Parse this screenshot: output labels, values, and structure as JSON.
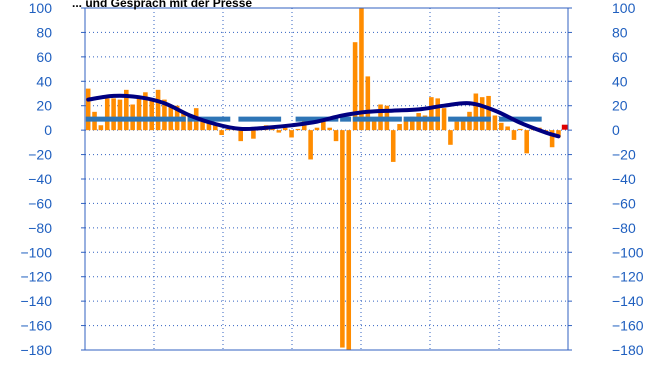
{
  "chart_data": {
    "type": "bar",
    "title": "... und Gespräch mit der Presse",
    "ylim": [
      -180,
      100
    ],
    "yticks": [
      100,
      80,
      60,
      40,
      20,
      0,
      -20,
      -40,
      -60,
      -80,
      -100,
      -120,
      -140,
      -160,
      -180
    ],
    "y_axis_right_mirrors_left": true,
    "grid": true,
    "colors": {
      "bars": "#FF8C00",
      "smooth_line": "#000080",
      "dashed_line": "#2E75B6",
      "last_marker": "#E00000",
      "axis_labels": "#1F5FBF",
      "grid": "#3060C0"
    },
    "series": [
      {
        "kind": "bar",
        "values": [
          34,
          15,
          4,
          26,
          26,
          25,
          33,
          21,
          28,
          31,
          26,
          33,
          25,
          19,
          20,
          14,
          11,
          18,
          7,
          8,
          4,
          -4,
          1,
          1,
          -9,
          1,
          -7,
          2,
          4,
          1,
          -2,
          2,
          -6,
          1,
          8,
          -24,
          2,
          8,
          2,
          -9,
          -178,
          -180,
          72,
          100,
          44,
          10,
          21,
          20,
          -26,
          5,
          9,
          11,
          14,
          12,
          27,
          26,
          18,
          -12,
          7,
          8,
          15,
          30,
          27,
          28,
          12,
          6,
          3,
          -8,
          1,
          -19,
          1,
          2,
          -1,
          -14,
          -6
        ]
      },
      {
        "kind": "smooth-line",
        "x": [
          0,
          4,
          8,
          12,
          16,
          20,
          24,
          28,
          32,
          36,
          40,
          44,
          48,
          52,
          56,
          60,
          64,
          68,
          72,
          74
        ],
        "values": [
          25,
          28,
          27,
          22,
          12,
          5,
          1,
          2,
          4,
          7,
          12,
          15,
          16,
          17,
          20,
          22,
          16,
          6,
          -2,
          -5
        ]
      },
      {
        "kind": "dashed-step",
        "segments": [
          [
            0,
            15,
            9
          ],
          [
            16,
            22,
            9
          ],
          [
            24,
            30,
            9
          ],
          [
            33,
            39,
            9
          ],
          [
            40,
            41,
            9
          ],
          [
            42,
            49,
            9
          ],
          [
            50,
            55,
            9
          ],
          [
            57,
            63,
            9
          ],
          [
            65,
            71,
            9
          ]
        ]
      },
      {
        "kind": "marker",
        "x": 75,
        "value": 2
      }
    ]
  }
}
